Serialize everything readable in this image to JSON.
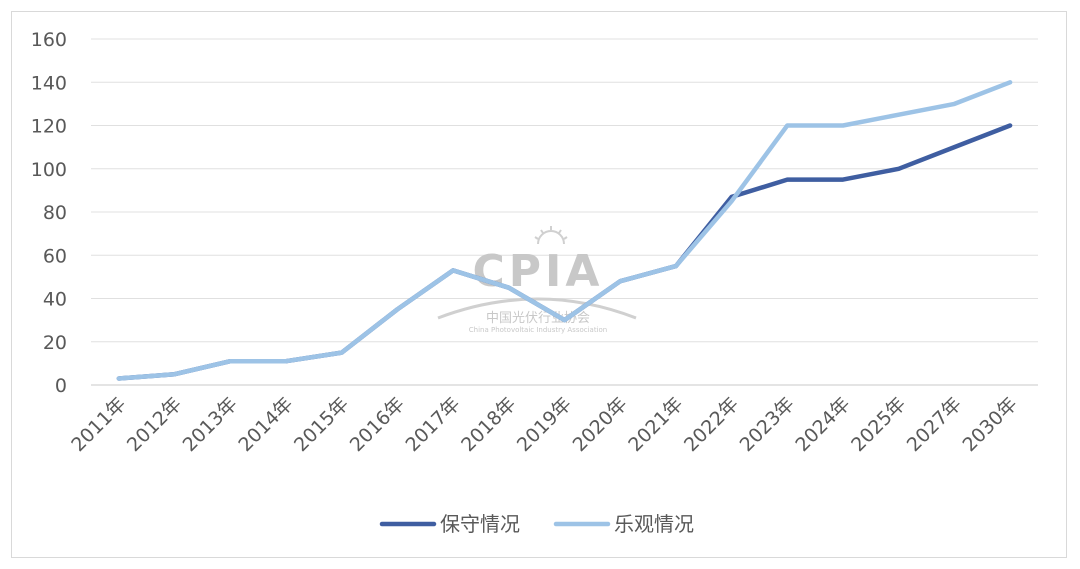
{
  "chart_data": {
    "type": "line",
    "categories": [
      "2011年",
      "2012年",
      "2013年",
      "2014年",
      "2015年",
      "2016年",
      "2017年",
      "2018年",
      "2019年",
      "2020年",
      "2021年",
      "2022年",
      "2023年",
      "2024年",
      "2025年",
      "2027年",
      "2030年"
    ],
    "series": [
      {
        "name": "保守情况",
        "color": "#3f5ea1",
        "values": [
          3,
          5,
          11,
          11,
          15,
          35,
          53,
          45,
          30,
          48,
          55,
          87,
          95,
          95,
          100,
          110,
          120
        ]
      },
      {
        "name": "乐观情况",
        "color": "#9dc3e6",
        "values": [
          3,
          5,
          11,
          11,
          15,
          35,
          53,
          45,
          30,
          48,
          55,
          85,
          120,
          120,
          125,
          130,
          140
        ]
      }
    ],
    "yticks": [
      0,
      20,
      40,
      60,
      80,
      100,
      120,
      140,
      160
    ],
    "ylim": [
      0,
      160
    ],
    "grid": true,
    "legend": "bottom-center"
  },
  "watermark": {
    "logo_text": "CPIA",
    "org_name": "中国光伏行业协会",
    "org_name_en": "China Photovoltaic Industry Association",
    "icon": "sun-logo-icon"
  }
}
